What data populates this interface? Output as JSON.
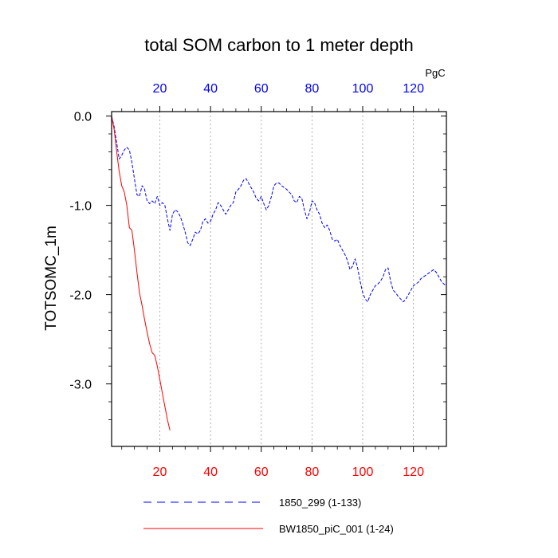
{
  "chart_data": {
    "type": "line",
    "title": "total SOM carbon to 1 meter depth",
    "ylabel": "TOTSOMC_1m",
    "units": "PgC",
    "xlim": [
      1,
      133
    ],
    "ylim": [
      -3.7,
      0.05
    ],
    "x_ticks_top": [
      "20",
      "40",
      "60",
      "80",
      "100",
      "120"
    ],
    "x_ticks_bottom": [
      "20",
      "40",
      "60",
      "80",
      "100",
      "120"
    ],
    "x_tick_values": [
      20,
      40,
      60,
      80,
      100,
      120
    ],
    "y_ticks": [
      "0.0",
      "-1.0",
      "-2.0",
      "-3.0"
    ],
    "y_tick_values": [
      0,
      -1,
      -2,
      -3
    ],
    "colors": {
      "top_axis": "#0000ff",
      "bottom_axis": "#ff0000",
      "series_blue": "#0000ff",
      "series_red": "#ff0000"
    },
    "series": [
      {
        "name": "1850_299 (1-133)",
        "style": "dashed",
        "color": "#0000ff",
        "x": [
          1,
          2,
          3,
          4,
          5,
          6,
          7,
          8,
          9,
          10,
          11,
          12,
          13,
          14,
          15,
          16,
          17,
          18,
          19,
          20,
          21,
          22,
          23,
          24,
          25,
          26,
          27,
          28,
          29,
          30,
          31,
          32,
          33,
          34,
          35,
          36,
          37,
          38,
          39,
          40,
          41,
          42,
          43,
          44,
          45,
          46,
          47,
          48,
          49,
          50,
          51,
          52,
          53,
          54,
          55,
          56,
          57,
          58,
          59,
          60,
          61,
          62,
          63,
          64,
          65,
          66,
          67,
          68,
          69,
          70,
          71,
          72,
          73,
          74,
          75,
          76,
          77,
          78,
          79,
          80,
          81,
          82,
          83,
          84,
          85,
          86,
          87,
          88,
          89,
          90,
          91,
          92,
          93,
          94,
          95,
          96,
          97,
          98,
          99,
          100,
          101,
          102,
          103,
          104,
          105,
          106,
          107,
          108,
          109,
          110,
          111,
          112,
          113,
          114,
          115,
          116,
          117,
          118,
          119,
          120,
          121,
          122,
          123,
          124,
          125,
          126,
          127,
          128,
          129,
          130,
          131,
          132,
          133
        ],
        "values": [
          0.0,
          -0.12,
          -0.3,
          -0.48,
          -0.44,
          -0.38,
          -0.35,
          -0.38,
          -0.52,
          -0.7,
          -0.88,
          -0.9,
          -0.78,
          -0.82,
          -0.95,
          -0.98,
          -0.95,
          -0.98,
          -0.9,
          -1.0,
          -0.97,
          -1.0,
          -1.15,
          -1.28,
          -1.1,
          -1.05,
          -1.07,
          -1.12,
          -1.2,
          -1.3,
          -1.42,
          -1.45,
          -1.38,
          -1.3,
          -1.32,
          -1.28,
          -1.18,
          -1.15,
          -1.2,
          -1.18,
          -1.1,
          -1.05,
          -0.97,
          -1.0,
          -1.05,
          -1.1,
          -1.05,
          -1.0,
          -0.97,
          -0.85,
          -0.82,
          -0.78,
          -0.72,
          -0.7,
          -0.75,
          -0.8,
          -0.85,
          -0.92,
          -0.95,
          -0.9,
          -0.98,
          -1.05,
          -1.0,
          -0.9,
          -0.78,
          -0.75,
          -0.75,
          -0.78,
          -0.8,
          -0.82,
          -0.85,
          -0.88,
          -0.95,
          -0.97,
          -0.9,
          -0.92,
          -1.05,
          -1.15,
          -1.08,
          -0.95,
          -0.97,
          -1.05,
          -1.1,
          -1.2,
          -1.25,
          -1.22,
          -1.28,
          -1.38,
          -1.4,
          -1.38,
          -1.45,
          -1.5,
          -1.55,
          -1.62,
          -1.72,
          -1.68,
          -1.6,
          -1.7,
          -1.85,
          -1.98,
          -2.05,
          -2.08,
          -2.0,
          -1.95,
          -1.9,
          -1.88,
          -1.85,
          -1.8,
          -1.72,
          -1.7,
          -1.85,
          -1.95,
          -1.98,
          -2.02,
          -2.05,
          -2.08,
          -2.05,
          -2.0,
          -1.95,
          -1.9,
          -1.88,
          -1.86,
          -1.82,
          -1.8,
          -1.78,
          -1.76,
          -1.74,
          -1.72,
          -1.75,
          -1.8,
          -1.85,
          -1.88,
          -1.9
        ]
      },
      {
        "name": "BW1850_piC_001 (1-24)",
        "style": "solid",
        "color": "#ff0000",
        "x": [
          1,
          2,
          3,
          4,
          5,
          6,
          7,
          8,
          9,
          10,
          11,
          12,
          13,
          14,
          15,
          16,
          17,
          18,
          19,
          20,
          21,
          22,
          23,
          24
        ],
        "values": [
          0.0,
          -0.15,
          -0.4,
          -0.62,
          -0.78,
          -0.85,
          -1.0,
          -1.25,
          -1.28,
          -1.5,
          -1.75,
          -1.98,
          -2.12,
          -2.28,
          -2.42,
          -2.55,
          -2.65,
          -2.68,
          -2.8,
          -2.95,
          -3.1,
          -3.25,
          -3.4,
          -3.52
        ]
      }
    ]
  }
}
